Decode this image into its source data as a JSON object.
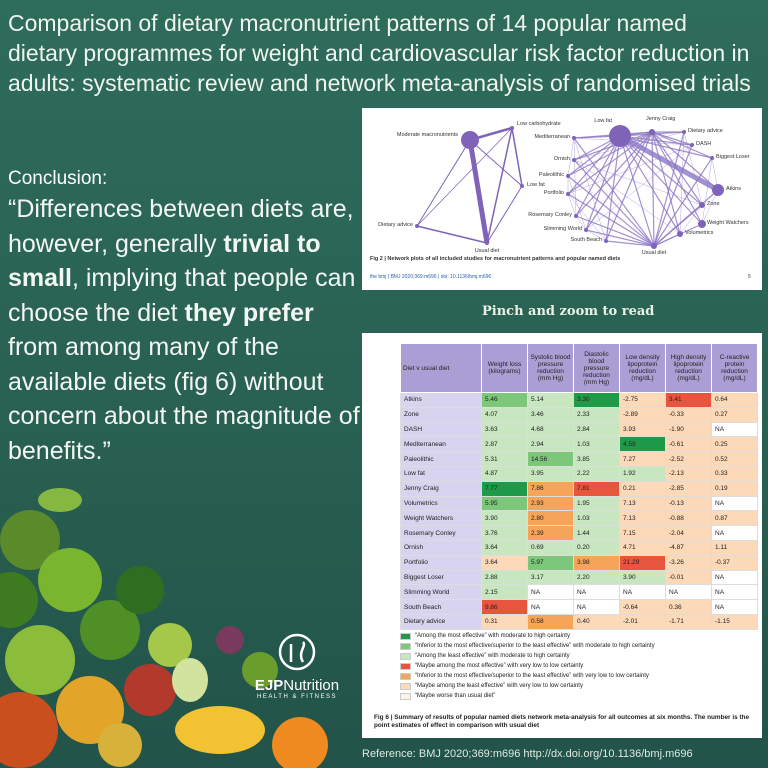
{
  "header": {
    "title": "Comparison of dietary macronutrient patterns of 14 popular named dietary programmes for weight and cardiovascular risk factor reduction in adults: systematic review and network meta-analysis of randomised trials"
  },
  "conclusion": {
    "label": "Conclusion:",
    "quote_parts": [
      "“Differences between diets are, however, generally ",
      "trivial to small",
      ", implying that people can choose the diet ",
      "they prefer",
      " from among many of the available diets (fig 6) without concern about the magnitude of benefits.”"
    ]
  },
  "network": {
    "left_nodes": [
      "Moderate macronutrients",
      "Low carbohydrate",
      "Low fat",
      "Dietary advice",
      "Usual diet"
    ],
    "right_nodes": [
      "Low fat",
      "Jenny Craig",
      "Dietary advice",
      "DASH",
      "Biggest Loser",
      "Mediterranean",
      "Ornish",
      "Paleolithic",
      "Atkins",
      "Portfolio",
      "Zone",
      "Rosemary Conley",
      "Weight Watchers",
      "Slimming World",
      "Volumetrics",
      "South Beach",
      "Usual diet"
    ],
    "caption": "Fig 2 | Network plots of all included studies for macronutrient patterns and popular named diets",
    "footer": "the bmj | BMJ 2020;369:m696 | doi: 10.1136/bmj.m696",
    "page": "5"
  },
  "zoom_hint": "Pinch and zoom to read",
  "table": {
    "columns": [
      "Diet v usual diet",
      "Weight loss (kilograms)",
      "Systolic blood pressure reduction (mm Hg)",
      "Diastolic blood pressure reduction (mm Hg)",
      "Low density lipoprotein reduction (mg/dL)",
      "High density lipoprotein reduction (mg/dL)",
      "C-reactive protein reduction (mg/dL)"
    ],
    "rows": [
      {
        "diet": "Atkins",
        "values": [
          "5.46",
          "5.14",
          "3.30",
          "-2.75",
          "3.41",
          "0.64"
        ],
        "colors": [
          "#7cc77a",
          "#c8e6c0",
          "#1f9a48",
          "#fcd9b8",
          "#e8553e",
          "#fcd9b8"
        ]
      },
      {
        "diet": "Zone",
        "values": [
          "4.07",
          "3.46",
          "2.33",
          "-2.89",
          "-0.33",
          "0.27"
        ],
        "colors": [
          "#c8e6c0",
          "#c8e6c0",
          "#c8e6c0",
          "#fcd9b8",
          "#fcd9b8",
          "#fcd9b8"
        ]
      },
      {
        "diet": "DASH",
        "values": [
          "3.63",
          "4.68",
          "2.84",
          "3.93",
          "-1.90",
          "NA"
        ],
        "colors": [
          "#c8e6c0",
          "#c8e6c0",
          "#c8e6c0",
          "#fcd9b8",
          "#fcd9b8",
          "#ffffff"
        ]
      },
      {
        "diet": "Mediterranean",
        "values": [
          "2.87",
          "2.94",
          "1.03",
          "4.59",
          "-0.61",
          "0.25"
        ],
        "colors": [
          "#c8e6c0",
          "#c8e6c0",
          "#c8e6c0",
          "#1f9a48",
          "#fcd9b8",
          "#fcd9b8"
        ]
      },
      {
        "diet": "Paleolithic",
        "values": [
          "5.31",
          "14.56",
          "3.85",
          "7.27",
          "-2.52",
          "0.52"
        ],
        "colors": [
          "#c8e6c0",
          "#7cc77a",
          "#c8e6c0",
          "#fcd9b8",
          "#fcd9b8",
          "#fcd9b8"
        ]
      },
      {
        "diet": "Low fat",
        "values": [
          "4.87",
          "3.95",
          "2.22",
          "1.92",
          "-2.13",
          "0.33"
        ],
        "colors": [
          "#c8e6c0",
          "#c8e6c0",
          "#c8e6c0",
          "#c8e6c0",
          "#fcd9b8",
          "#fcd9b8"
        ]
      },
      {
        "diet": "Jenny Craig",
        "values": [
          "7.77",
          "7.86",
          "7.81",
          "0.21",
          "-2.85",
          "0.19"
        ],
        "colors": [
          "#1f9a48",
          "#f5a45a",
          "#e8553e",
          "#fcd9b8",
          "#fcd9b8",
          "#fcd9b8"
        ]
      },
      {
        "diet": "Volumetrics",
        "values": [
          "5.95",
          "2.93",
          "1.95",
          "7.13",
          "-0.13",
          "NA"
        ],
        "colors": [
          "#7cc77a",
          "#f5a45a",
          "#c8e6c0",
          "#fcd9b8",
          "#fcd9b8",
          "#ffffff"
        ]
      },
      {
        "diet": "Weight Watchers",
        "values": [
          "3.90",
          "2.80",
          "1.03",
          "7.13",
          "-0.88",
          "0.87"
        ],
        "colors": [
          "#c8e6c0",
          "#f5a45a",
          "#c8e6c0",
          "#fcd9b8",
          "#fcd9b8",
          "#fcd9b8"
        ]
      },
      {
        "diet": "Rosemary Conley",
        "values": [
          "3.76",
          "2.39",
          "1.44",
          "7.15",
          "-2.04",
          "NA"
        ],
        "colors": [
          "#c8e6c0",
          "#f5a45a",
          "#c8e6c0",
          "#fcd9b8",
          "#fcd9b8",
          "#ffffff"
        ]
      },
      {
        "diet": "Ornish",
        "values": [
          "3.64",
          "0.69",
          "0.20",
          "4.71",
          "-4.87",
          "1.11"
        ],
        "colors": [
          "#c8e6c0",
          "#c8e6c0",
          "#c8e6c0",
          "#fcd9b8",
          "#fcd9b8",
          "#fcd9b8"
        ]
      },
      {
        "diet": "Portfolio",
        "values": [
          "3.64",
          "5.97",
          "3.98",
          "21.29",
          "-3.26",
          "-0.37"
        ],
        "colors": [
          "#fcd9b8",
          "#7cc77a",
          "#f5a45a",
          "#e8553e",
          "#fcd9b8",
          "#fcd9b8"
        ]
      },
      {
        "diet": "Biggest Loser",
        "values": [
          "2.88",
          "3.17",
          "2.20",
          "3.90",
          "-0.01",
          "NA"
        ],
        "colors": [
          "#c8e6c0",
          "#c8e6c0",
          "#c8e6c0",
          "#c8e6c0",
          "#fcd9b8",
          "#ffffff"
        ]
      },
      {
        "diet": "Slimming World",
        "values": [
          "2.15",
          "NA",
          "NA",
          "NA",
          "NA",
          "NA"
        ],
        "colors": [
          "#c8e6c0",
          "#ffffff",
          "#ffffff",
          "#ffffff",
          "#ffffff",
          "#ffffff"
        ]
      },
      {
        "diet": "South Beach",
        "values": [
          "9.86",
          "NA",
          "NA",
          "-0.64",
          "0.36",
          "NA"
        ],
        "colors": [
          "#e8553e",
          "#ffffff",
          "#ffffff",
          "#fcd9b8",
          "#fcd9b8",
          "#ffffff"
        ]
      },
      {
        "diet": "Dietary advice",
        "values": [
          "0.31",
          "0.58",
          "0.40",
          "-2.01",
          "-1.71",
          "-1.15"
        ],
        "colors": [
          "#fcd9b8",
          "#f5a45a",
          "#fcd9b8",
          "#fcd9b8",
          "#fcd9b8",
          "#fcd9b8"
        ]
      }
    ],
    "legend": [
      {
        "text": "“Among the most effective” with moderate to high certainty",
        "color": "#1f9a48"
      },
      {
        "text": "“Inferior to the most effective/superior to the least effective” with moderate to high certainty",
        "color": "#7cc77a"
      },
      {
        "text": "“Among the least effective” with moderate to high certainty",
        "color": "#c8e6c0"
      },
      {
        "text": "“Maybe among the most effective” with very low to low certainty",
        "color": "#e8553e"
      },
      {
        "text": "“Inferior to the most effective/superior to the least effective” with very low to low certainty",
        "color": "#f5a45a"
      },
      {
        "text": "“Maybe among the least effective” with very low to low certainty",
        "color": "#fcd9b8"
      },
      {
        "text": "“Maybe worse than usual diet”",
        "color": "#fff3e3"
      }
    ],
    "caption": "Fig 6 | Summary of results of popular named diets network meta-analysis for all outcomes at six months. The number is the point estimates of effect in comparison with usual diet"
  },
  "logo": {
    "brand_bold": "EJP",
    "brand_rest": "Nutrition",
    "tagline": "HEALTH & FITNESS"
  },
  "reference": "Reference: BMJ 2020;369:m696 http://dx.doi.org/10.1136/bmj.m696"
}
